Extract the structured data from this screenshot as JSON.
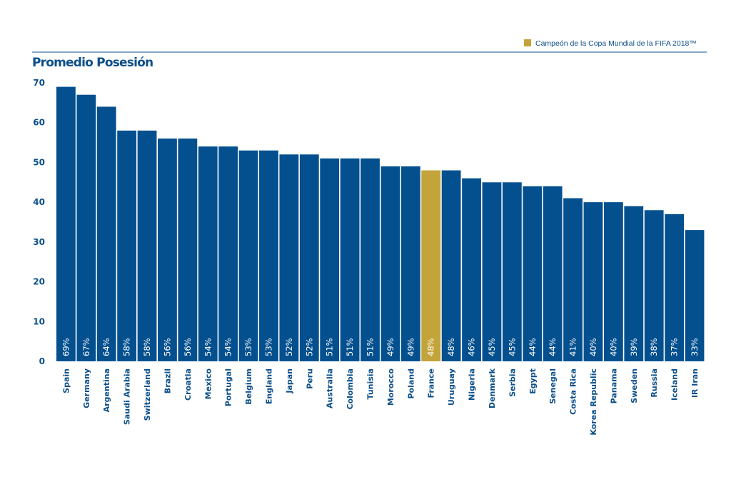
{
  "colors": {
    "bar": "#04508f",
    "highlight": "#c3a43a",
    "text": "#0b4f8a",
    "rule": "#0b4f8a",
    "value_label": "#ffffff",
    "value_label_highlight": "#1c4e7e"
  },
  "legend": {
    "label": "Campeón de la Copa Mundial de la FIFA 2018™",
    "placement": "top-right"
  },
  "chart_data": {
    "type": "bar",
    "title": "Promedio Posesión",
    "xlabel": "",
    "ylabel": "",
    "ylim": [
      0,
      70
    ],
    "yticks": [
      0,
      10,
      20,
      30,
      40,
      50,
      60,
      70
    ],
    "grid": false,
    "highlight_category": "France",
    "categories": [
      "Spain",
      "Germany",
      "Argentina",
      "Saudi Arabia",
      "Switzerland",
      "Brazil",
      "Croatia",
      "Mexico",
      "Portugal",
      "Belgium",
      "England",
      "Japan",
      "Peru",
      "Australia",
      "Colombia",
      "Tunisia",
      "Morocco",
      "Poland",
      "France",
      "Uruguay",
      "Nigeria",
      "Denmark",
      "Serbia",
      "Egypt",
      "Senegal",
      "Costa Rica",
      "Korea Republic",
      "Panama",
      "Sweden",
      "Russia",
      "Iceland",
      "IR Iran"
    ],
    "values": [
      69,
      67,
      64,
      58,
      58,
      56,
      56,
      54,
      54,
      53,
      53,
      52,
      52,
      51,
      51,
      51,
      49,
      49,
      48,
      48,
      46,
      45,
      45,
      44,
      44,
      41,
      40,
      40,
      39,
      38,
      37,
      33
    ],
    "value_labels": [
      "69%",
      "67%",
      "64%",
      "58%",
      "58%",
      "56%",
      "56%",
      "54%",
      "54%",
      "53%",
      "53%",
      "52%",
      "52%",
      "51%",
      "51%",
      "51%",
      "49%",
      "49%",
      "48%",
      "48%",
      "46%",
      "45%",
      "45%",
      "44%",
      "44%",
      "41%",
      "40%",
      "40%",
      "39%",
      "38%",
      "37%",
      "33%"
    ]
  }
}
